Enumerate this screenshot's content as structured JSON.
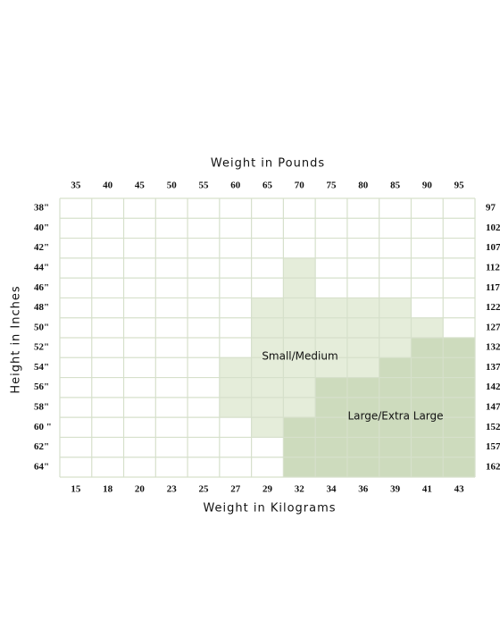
{
  "header": {
    "top_title": "Weight in Pounds",
    "bottom_title": "Weight in Kilograms",
    "side_title": "Height in Inches"
  },
  "columns": {
    "pounds": [
      35,
      40,
      45,
      50,
      55,
      60,
      65,
      70,
      75,
      80,
      85,
      90,
      95
    ],
    "kilograms": [
      15,
      18,
      20,
      23,
      25,
      27,
      29,
      32,
      34,
      36,
      39,
      41,
      43
    ]
  },
  "rows": {
    "inches": [
      "38\"",
      "40\"",
      "42\"",
      "44\"",
      "46\"",
      "48\"",
      "50\"",
      "52\"",
      "54\"",
      "56\"",
      "58\"",
      "60 \"",
      "62\"",
      "64\""
    ],
    "centimeters": [
      97,
      102,
      107,
      112,
      117,
      122,
      127,
      132,
      137,
      142,
      147,
      152,
      157,
      162
    ]
  },
  "regions": [
    {
      "label": "Small/Medium",
      "color": "#e5edda",
      "spans": [
        null,
        null,
        null,
        [
          70,
          70
        ],
        [
          70,
          70
        ],
        [
          65,
          85
        ],
        [
          65,
          90
        ],
        [
          65,
          85
        ],
        [
          60,
          80
        ],
        [
          60,
          70
        ],
        [
          60,
          70
        ],
        [
          65,
          65
        ],
        null,
        null
      ]
    },
    {
      "label": "Large/Extra Large",
      "color": "#cddbbd",
      "spans": [
        null,
        null,
        null,
        null,
        null,
        null,
        null,
        [
          90,
          95
        ],
        [
          85,
          95
        ],
        [
          75,
          95
        ],
        [
          75,
          95
        ],
        [
          70,
          95
        ],
        [
          70,
          95
        ],
        [
          70,
          95
        ]
      ]
    }
  ]
}
